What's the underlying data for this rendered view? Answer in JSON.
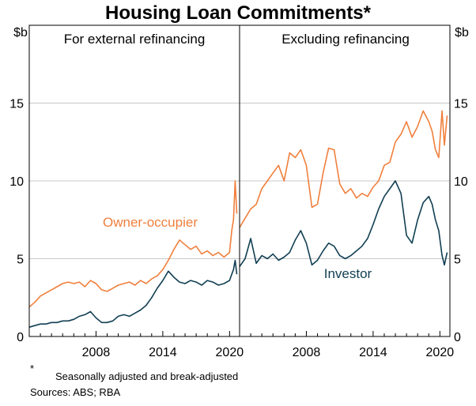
{
  "chart_data": {
    "type": "line",
    "title": "Housing Loan Commitments*",
    "unit": "$b",
    "ylim": [
      0,
      20
    ],
    "yticks": [
      0,
      5,
      10,
      15
    ],
    "xticks": [
      2008,
      2014,
      2020
    ],
    "grid": true,
    "colors": {
      "owner_occupier": "#F07F3C",
      "investor": "#113F53"
    },
    "series_labels": {
      "owner_occupier": "Owner-occupier",
      "investor": "Investor"
    },
    "panels": [
      {
        "title": "For external refinancing",
        "xlim": [
          2002.0,
          2020.9
        ],
        "series": [
          {
            "key": "owner_occupier",
            "x": [
              2002.0,
              2002.5,
              2003.0,
              2003.5,
              2004.0,
              2004.5,
              2005.0,
              2005.5,
              2006.0,
              2006.5,
              2007.0,
              2007.5,
              2008.0,
              2008.5,
              2009.0,
              2009.5,
              2010.0,
              2010.5,
              2011.0,
              2011.5,
              2012.0,
              2012.5,
              2013.0,
              2013.5,
              2014.0,
              2014.5,
              2015.0,
              2015.5,
              2016.0,
              2016.5,
              2017.0,
              2017.5,
              2018.0,
              2018.5,
              2019.0,
              2019.5,
              2020.0,
              2020.2,
              2020.35,
              2020.5,
              2020.65
            ],
            "values": [
              1.9,
              2.2,
              2.6,
              2.8,
              3.0,
              3.2,
              3.4,
              3.5,
              3.4,
              3.5,
              3.2,
              3.6,
              3.4,
              3.0,
              2.9,
              3.1,
              3.3,
              3.4,
              3.5,
              3.3,
              3.6,
              3.4,
              3.7,
              3.9,
              4.3,
              4.9,
              5.6,
              6.2,
              5.9,
              5.6,
              5.8,
              5.3,
              5.5,
              5.2,
              5.4,
              5.1,
              5.4,
              6.8,
              7.5,
              10.0,
              7.9
            ]
          },
          {
            "key": "investor",
            "x": [
              2002.0,
              2002.5,
              2003.0,
              2003.5,
              2004.0,
              2004.5,
              2005.0,
              2005.5,
              2006.0,
              2006.5,
              2007.0,
              2007.5,
              2008.0,
              2008.5,
              2009.0,
              2009.5,
              2010.0,
              2010.5,
              2011.0,
              2011.5,
              2012.0,
              2012.5,
              2013.0,
              2013.5,
              2014.0,
              2014.5,
              2015.0,
              2015.5,
              2016.0,
              2016.5,
              2017.0,
              2017.5,
              2018.0,
              2018.5,
              2019.0,
              2019.5,
              2020.0,
              2020.2,
              2020.35,
              2020.5,
              2020.65
            ],
            "values": [
              0.6,
              0.7,
              0.8,
              0.8,
              0.9,
              0.9,
              1.0,
              1.0,
              1.1,
              1.3,
              1.4,
              1.6,
              1.2,
              0.9,
              0.9,
              1.0,
              1.3,
              1.4,
              1.3,
              1.5,
              1.7,
              2.0,
              2.5,
              3.1,
              3.6,
              4.2,
              3.8,
              3.5,
              3.4,
              3.6,
              3.5,
              3.3,
              3.6,
              3.5,
              3.3,
              3.4,
              3.6,
              4.0,
              4.3,
              4.9,
              4.0
            ]
          }
        ]
      },
      {
        "title": "Excluding refinancing",
        "xlim": [
          2002.0,
          2020.9
        ],
        "series": [
          {
            "key": "owner_occupier",
            "x": [
              2002.0,
              2002.5,
              2003.0,
              2003.5,
              2004.0,
              2004.5,
              2005.0,
              2005.5,
              2006.0,
              2006.5,
              2007.0,
              2007.5,
              2008.0,
              2008.5,
              2009.0,
              2009.5,
              2010.0,
              2010.5,
              2011.0,
              2011.5,
              2012.0,
              2012.5,
              2013.0,
              2013.5,
              2014.0,
              2014.5,
              2015.0,
              2015.5,
              2016.0,
              2016.5,
              2017.0,
              2017.5,
              2018.0,
              2018.5,
              2019.0,
              2019.3,
              2019.6,
              2019.9,
              2020.2,
              2020.4,
              2020.65
            ],
            "values": [
              7.0,
              7.6,
              8.2,
              8.5,
              9.5,
              10.0,
              10.5,
              11.0,
              10.0,
              11.8,
              11.5,
              12.0,
              11.0,
              8.3,
              8.5,
              10.5,
              12.1,
              12.0,
              9.8,
              9.2,
              9.5,
              8.9,
              9.2,
              9.0,
              9.6,
              10.0,
              11.0,
              11.2,
              12.5,
              13.0,
              13.8,
              12.8,
              13.5,
              14.5,
              13.8,
              13.2,
              12.0,
              11.5,
              14.5,
              12.3,
              14.2
            ]
          },
          {
            "key": "investor",
            "x": [
              2002.0,
              2002.5,
              2003.0,
              2003.5,
              2004.0,
              2004.5,
              2005.0,
              2005.5,
              2006.0,
              2006.5,
              2007.0,
              2007.5,
              2008.0,
              2008.5,
              2009.0,
              2009.5,
              2010.0,
              2010.5,
              2011.0,
              2011.5,
              2012.0,
              2012.5,
              2013.0,
              2013.5,
              2014.0,
              2014.5,
              2015.0,
              2015.5,
              2016.0,
              2016.5,
              2017.0,
              2017.5,
              2018.0,
              2018.5,
              2019.0,
              2019.3,
              2019.6,
              2019.9,
              2020.2,
              2020.4,
              2020.65
            ],
            "values": [
              4.5,
              5.0,
              6.3,
              4.7,
              5.2,
              5.0,
              5.3,
              4.9,
              5.1,
              5.4,
              6.2,
              6.8,
              6.0,
              4.6,
              4.9,
              5.5,
              6.0,
              5.8,
              5.2,
              5.0,
              5.2,
              5.5,
              5.8,
              6.3,
              7.2,
              8.2,
              9.0,
              9.5,
              10.0,
              9.2,
              6.5,
              6.0,
              7.5,
              8.6,
              9.0,
              8.5,
              7.5,
              6.8,
              5.2,
              4.6,
              5.4
            ]
          }
        ]
      }
    ],
    "annotations": [
      {
        "text": "Owner-occupier",
        "panel": 0,
        "color": "owner_occupier"
      },
      {
        "text": "Investor",
        "panel": 1,
        "color": "investor"
      }
    ]
  },
  "footnote": {
    "symbol": "*",
    "text": "Seasonally adjusted and break-adjusted",
    "sources": "Sources: ABS; RBA"
  }
}
